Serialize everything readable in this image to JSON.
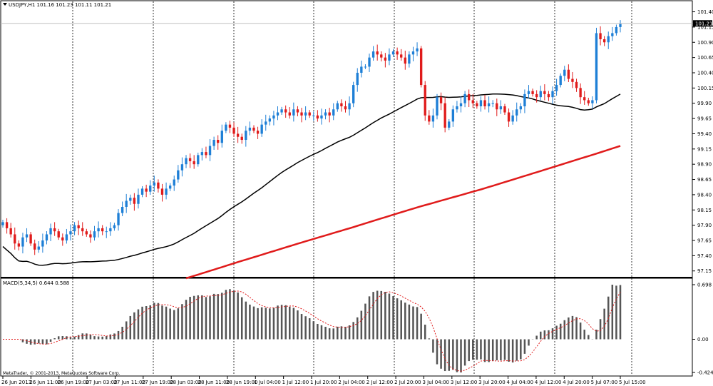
{
  "main_header": {
    "arrow_icon": "triangle-down-icon",
    "text": "USDJPY,H1  101.16 101.23 101.11 101.21"
  },
  "macd_header": {
    "text": "MACD(5,34,5) 0.644 0.588"
  },
  "price_marker": "101.21",
  "copyright": "MetaTrader, © 2001-2013, MetaQuotes Software Corp.",
  "colors": {
    "background": "#ffffff",
    "bull": "#1e7fd6",
    "bear": "#e01b1b",
    "ma_fast": "#000000",
    "ma_slow": "#e01b1b",
    "histogram": "#555555",
    "signal": "#e01b1b",
    "grid": "#000000",
    "marker_bg": "#000000",
    "marker_text": "#ffffff"
  },
  "chart_data": [
    {
      "type": "candlestick",
      "symbol": "USDJPY",
      "timeframe": "H1",
      "ylim": [
        97.1,
        101.5
      ],
      "price_ticks": [
        "101.40",
        "101.15",
        "100.90",
        "100.65",
        "100.40",
        "100.15",
        "99.90",
        "99.65",
        "99.40",
        "99.15",
        "98.90",
        "98.65",
        "98.40",
        "98.15",
        "97.90",
        "97.65",
        "97.40",
        "97.15"
      ],
      "x_ticks": [
        "26 Jun 2013",
        "26 Jun 11:00",
        "26 Jun 19:00",
        "27 Jun 03:00",
        "27 Jun 11:00",
        "27 Jun 19:00",
        "28 Jun 03:00",
        "28 Jun 11:00",
        "28 Jun 19:00",
        "1 Jul 04:00",
        "1 Jul 12:00",
        "1 Jul 20:00",
        "2 Jul 04:00",
        "2 Jul 12:00",
        "2 Jul 20:00",
        "3 Jul 04:00",
        "3 Jul 12:00",
        "3 Jul 20:00",
        "4 Jul 04:00",
        "4 Jul 12:00",
        "4 Jul 20:00",
        "5 Jul 07:00",
        "5 Jul 15:00"
      ],
      "separators_after_tick_index": [
        2,
        5,
        8,
        11,
        14,
        17,
        20
      ],
      "close": [
        97.95,
        97.85,
        97.75,
        97.6,
        97.55,
        97.7,
        97.75,
        97.6,
        97.5,
        97.55,
        97.65,
        97.75,
        97.85,
        97.8,
        97.7,
        97.65,
        97.75,
        97.8,
        97.9,
        97.85,
        97.8,
        97.75,
        97.7,
        97.8,
        97.85,
        97.8,
        97.8,
        97.85,
        97.9,
        98.1,
        98.2,
        98.3,
        98.35,
        98.25,
        98.4,
        98.5,
        98.45,
        98.55,
        98.6,
        98.5,
        98.4,
        98.5,
        98.55,
        98.65,
        98.8,
        98.9,
        99.0,
        98.95,
        98.9,
        99.05,
        99.1,
        99.05,
        99.2,
        99.3,
        99.25,
        99.45,
        99.55,
        99.5,
        99.4,
        99.35,
        99.3,
        99.45,
        99.5,
        99.45,
        99.4,
        99.55,
        99.6,
        99.65,
        99.7,
        99.75,
        99.8,
        99.75,
        99.7,
        99.8,
        99.75,
        99.7,
        99.75,
        99.7,
        99.7,
        99.65,
        99.7,
        99.75,
        99.7,
        99.8,
        99.9,
        99.85,
        99.8,
        99.9,
        100.2,
        100.4,
        100.5,
        100.5,
        100.65,
        100.75,
        100.7,
        100.65,
        100.6,
        100.7,
        100.75,
        100.7,
        100.65,
        100.55,
        100.7,
        100.75,
        100.8,
        100.2,
        99.7,
        99.6,
        99.7,
        100.0,
        99.9,
        99.5,
        99.6,
        99.8,
        99.85,
        99.9,
        100.05,
        99.95,
        99.9,
        99.85,
        99.95,
        99.85,
        99.9,
        99.9,
        99.8,
        99.85,
        99.75,
        99.6,
        99.7,
        99.8,
        99.85,
        100.05,
        100.1,
        100.05,
        100.0,
        100.1,
        100.05,
        100.0,
        100.1,
        100.2,
        100.35,
        100.45,
        100.3,
        100.25,
        100.15,
        100.0,
        99.95,
        99.9,
        99.95,
        101.05,
        100.95,
        100.9,
        101.0,
        101.05,
        101.15,
        101.2
      ],
      "ma_fast_start": 97.55,
      "ma_fast_end": 100.05,
      "ma_slow_start": 97.1,
      "ma_slow_end": 99.2,
      "current_price": 101.21
    },
    {
      "type": "histogram",
      "title": "MACD(5,34,5)",
      "ylim": [
        -0.424,
        0.698
      ],
      "ticks": [
        "0.698",
        "0.00",
        "-0.424"
      ],
      "histogram_note": "bars mirror close minus moving average of closes"
    }
  ]
}
